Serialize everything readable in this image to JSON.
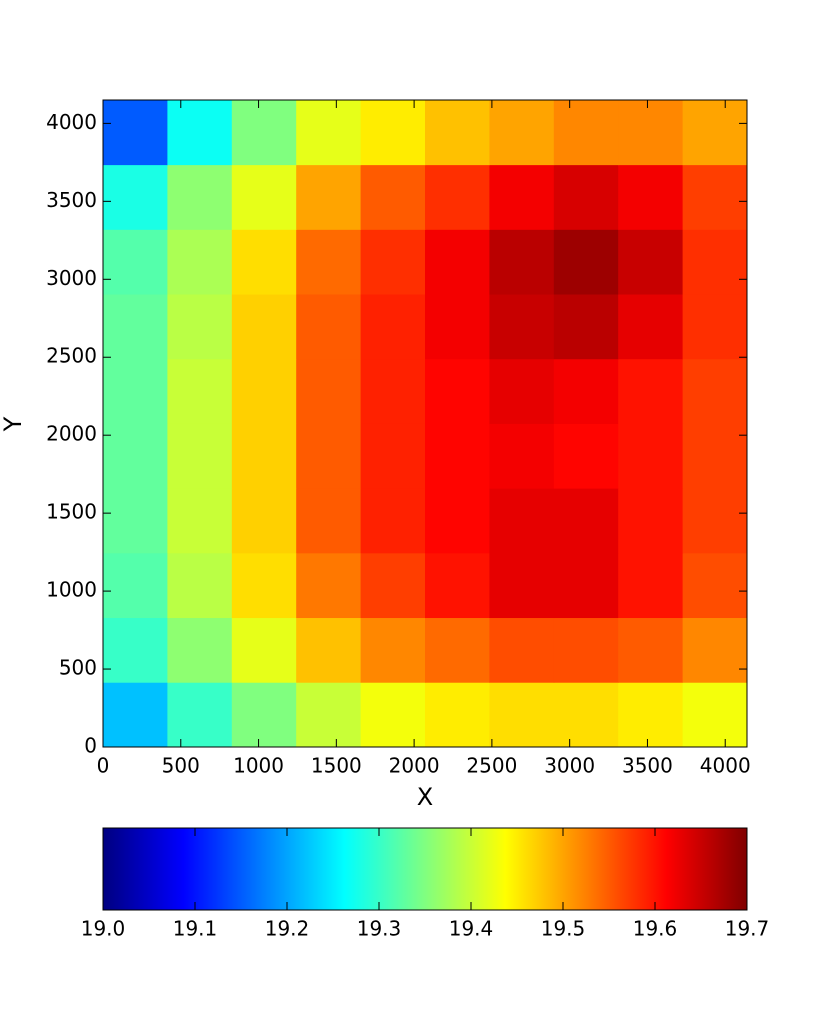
{
  "chart_data": {
    "type": "heatmap",
    "xlabel": "X",
    "ylabel": "Y",
    "x": [
      207,
      621,
      1035,
      1449,
      1863,
      2277,
      2691,
      3105,
      3519,
      3933
    ],
    "y": [
      208,
      623,
      1038,
      1453,
      1868,
      2283,
      2698,
      3113,
      3528,
      3943
    ],
    "z": [
      [
        19.22,
        19.3,
        19.35,
        19.4,
        19.43,
        19.45,
        19.46,
        19.46,
        19.45,
        19.43
      ],
      [
        19.3,
        19.36,
        19.42,
        19.48,
        19.52,
        19.54,
        19.56,
        19.56,
        19.55,
        19.52
      ],
      [
        19.32,
        19.39,
        19.46,
        19.53,
        19.57,
        19.6,
        19.63,
        19.63,
        19.6,
        19.56
      ],
      [
        19.33,
        19.4,
        19.47,
        19.55,
        19.59,
        19.61,
        19.63,
        19.63,
        19.6,
        19.57
      ],
      [
        19.33,
        19.4,
        19.47,
        19.55,
        19.59,
        19.61,
        19.62,
        19.61,
        19.6,
        19.57
      ],
      [
        19.33,
        19.4,
        19.47,
        19.55,
        19.59,
        19.61,
        19.63,
        19.62,
        19.6,
        19.57
      ],
      [
        19.33,
        19.39,
        19.47,
        19.55,
        19.59,
        19.62,
        19.65,
        19.66,
        19.63,
        19.58
      ],
      [
        19.32,
        19.38,
        19.46,
        19.54,
        19.58,
        19.62,
        19.66,
        19.68,
        19.65,
        19.58
      ],
      [
        19.28,
        19.36,
        19.42,
        19.5,
        19.55,
        19.58,
        19.62,
        19.64,
        19.62,
        19.57
      ],
      [
        19.15,
        19.27,
        19.35,
        19.42,
        19.45,
        19.48,
        19.5,
        19.52,
        19.52,
        19.5
      ]
    ],
    "xlim": [
      0,
      4140
    ],
    "ylim": [
      0,
      4150
    ],
    "xticks": [
      0,
      500,
      1000,
      1500,
      2000,
      2500,
      3000,
      3500,
      4000
    ],
    "yticks": [
      0,
      500,
      1000,
      1500,
      2000,
      2500,
      3000,
      3500,
      4000
    ],
    "colormap": "jet",
    "colorbar": {
      "lim": [
        19.0,
        19.7
      ],
      "ticks": [
        {
          "value": 19.0,
          "label": "19.0"
        },
        19.1,
        19.2,
        19.3,
        19.4,
        19.5,
        19.6,
        19.7
      ]
    }
  }
}
